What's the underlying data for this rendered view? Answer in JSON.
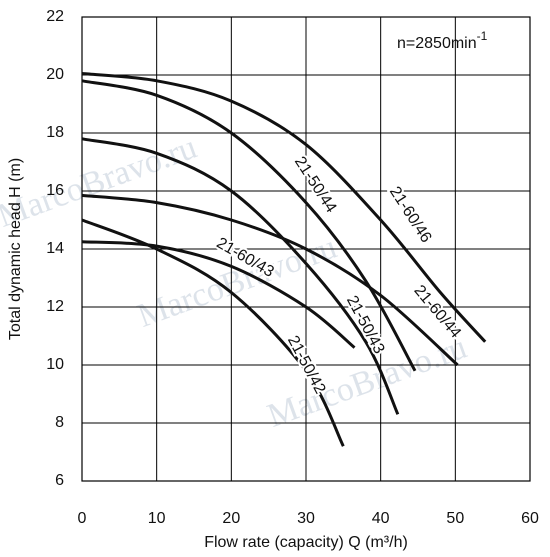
{
  "chart_data": {
    "type": "line",
    "annotation": "n=2850min",
    "annotation_sup": "-1",
    "watermark": "MarcoBravo.ru",
    "x_label": "Flow rate (capacity) Q (m³/h)",
    "y_label": "Total dynamic head H (m)",
    "xlim": [
      0,
      60
    ],
    "xticks": [
      0,
      10,
      20,
      30,
      40,
      50,
      60
    ],
    "ylim": [
      6,
      22
    ],
    "yticks": [
      6,
      8,
      10,
      12,
      14,
      16,
      18,
      20,
      22
    ],
    "grid": true,
    "series": [
      {
        "name": "21-60/46",
        "color": "#111111",
        "x": [
          0,
          10,
          20,
          30,
          40,
          48,
          54
        ],
        "values": [
          20.05,
          19.8,
          19.1,
          17.6,
          15.0,
          12.5,
          10.8
        ]
      },
      {
        "name": "21-50/44",
        "color": "#111111",
        "x": [
          0,
          10,
          20,
          30,
          38,
          44.6
        ],
        "values": [
          19.8,
          19.3,
          18.0,
          15.6,
          12.9,
          9.8
        ]
      },
      {
        "name": "21-60/44",
        "color": "#111111",
        "x": [
          0,
          10,
          20,
          30,
          40,
          50.3
        ],
        "values": [
          15.85,
          15.6,
          15.0,
          14.0,
          12.4,
          10.0
        ]
      },
      {
        "name": "21-50/43",
        "color": "#111111",
        "x": [
          0,
          10,
          20,
          30,
          38,
          42.3
        ],
        "values": [
          17.8,
          17.3,
          16.0,
          13.5,
          10.8,
          8.3
        ]
      },
      {
        "name": "21-60/43",
        "color": "#111111",
        "x": [
          0,
          10,
          20,
          30,
          36.5
        ],
        "values": [
          14.25,
          14.1,
          13.4,
          12.0,
          10.6
        ]
      },
      {
        "name": "21-50/42",
        "color": "#111111",
        "x": [
          0,
          10,
          20,
          30,
          35
        ],
        "values": [
          15.0,
          14.0,
          12.5,
          9.8,
          7.2
        ]
      }
    ]
  }
}
